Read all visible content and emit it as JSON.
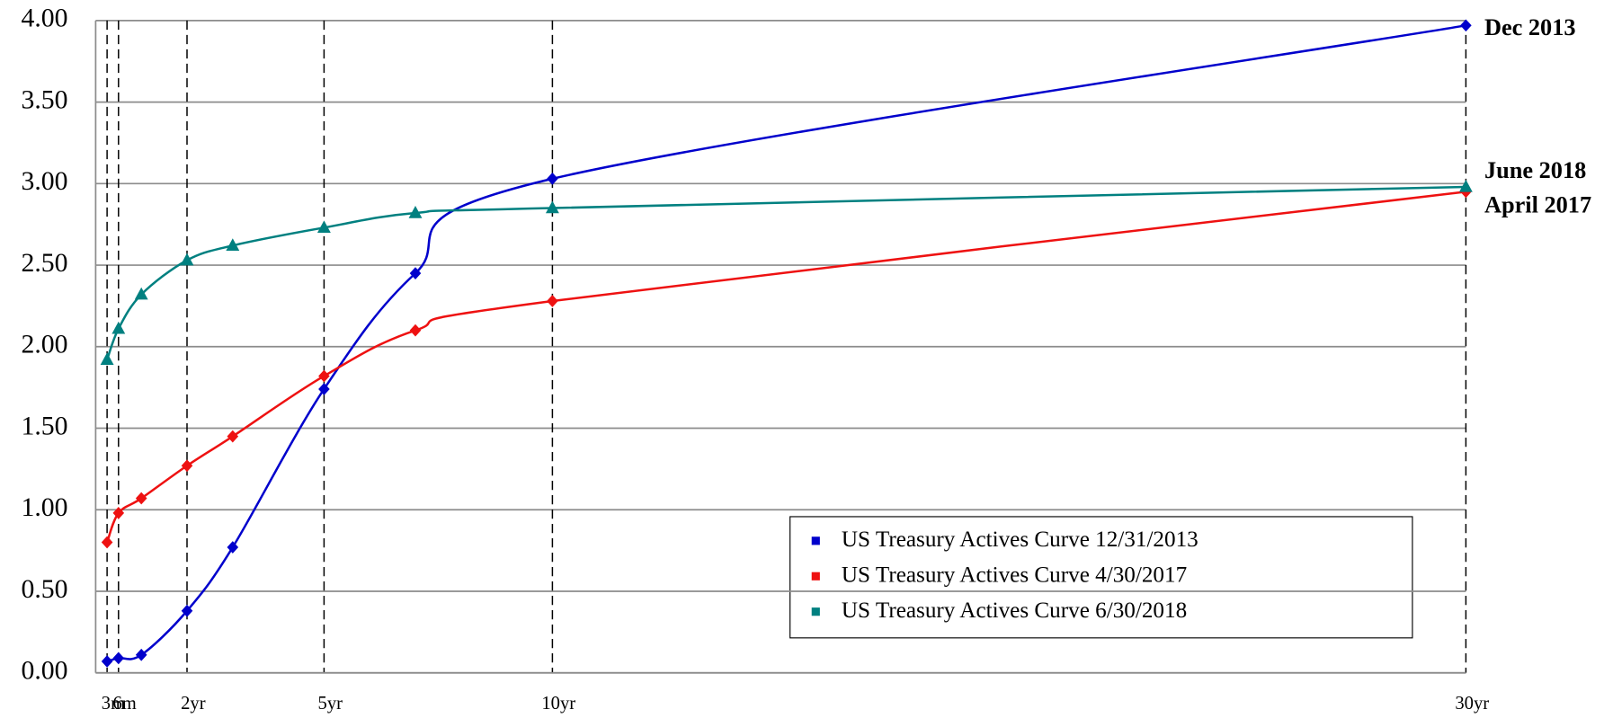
{
  "chart_data": {
    "type": "line",
    "x": [
      0.25,
      0.5,
      1,
      2,
      3,
      5,
      7,
      10,
      30
    ],
    "xlim": [
      0,
      30
    ],
    "xticks": [
      {
        "value": 0.25,
        "label": "3m"
      },
      {
        "value": 0.5,
        "label": "6m"
      },
      {
        "value": 2,
        "label": "2yr"
      },
      {
        "value": 5,
        "label": "5yr"
      },
      {
        "value": 10,
        "label": "10yr"
      },
      {
        "value": 30,
        "label": "30yr"
      }
    ],
    "ylim": [
      0,
      4
    ],
    "yticks": [
      {
        "value": 0,
        "label": "0.00"
      },
      {
        "value": 0.5,
        "label": "0.50"
      },
      {
        "value": 1,
        "label": "1.00"
      },
      {
        "value": 1.5,
        "label": "1.50"
      },
      {
        "value": 2,
        "label": "2.00"
      },
      {
        "value": 2.5,
        "label": "2.50"
      },
      {
        "value": 3,
        "label": "3.00"
      },
      {
        "value": 3.5,
        "label": "3.50"
      },
      {
        "value": 4,
        "label": "4.00"
      }
    ],
    "grid": true,
    "legend": "lower right",
    "series": [
      {
        "name": "US Treasury Actives Curve 12/31/2013",
        "end_label": "Dec 2013",
        "color": "#0000cc",
        "marker": "diamond",
        "values": [
          0.07,
          0.09,
          0.11,
          0.38,
          0.77,
          1.74,
          2.45,
          3.03,
          3.97
        ]
      },
      {
        "name": "US Treasury Actives Curve 4/30/2017",
        "end_label": "April 2017",
        "color": "#ee1111",
        "marker": "diamond",
        "values": [
          0.8,
          0.98,
          1.07,
          1.27,
          1.45,
          1.82,
          2.1,
          2.28,
          2.95
        ]
      },
      {
        "name": "US Treasury Actives Curve 6/30/2018",
        "end_label": "June 2018",
        "color": "#008080",
        "marker": "triangle",
        "values": [
          1.92,
          2.11,
          2.32,
          2.53,
          2.62,
          2.73,
          2.82,
          2.85,
          2.98
        ]
      }
    ]
  }
}
